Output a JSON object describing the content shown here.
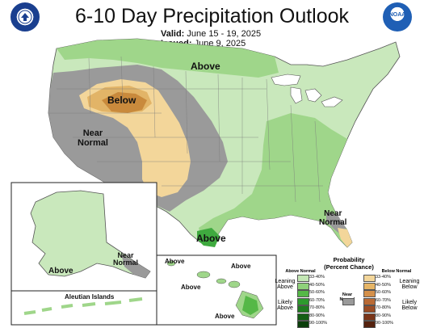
{
  "title": "6-10 Day Precipitation Outlook",
  "valid_label": "Valid:",
  "valid_dates": "June 15 - 19, 2025",
  "issued_label": "Issued:",
  "issued_date": "June 9, 2025",
  "logos": {
    "left": {
      "name": "doc-seal-icon",
      "color": "#1a3f8f"
    },
    "right": {
      "name": "noaa-logo-icon",
      "text": "NOAA",
      "color": "#1f5fb5"
    }
  },
  "map_labels": {
    "above_north": "Above",
    "below_west": "Below",
    "near_normal_west": "Near\nNormal",
    "near_normal_florida": "Near\nNormal",
    "above_texas": "Above",
    "alaska_above": "Above",
    "alaska_near_normal": "Near\nNormal",
    "aleutian": "Aleutian Islands",
    "hawaii_above_1": "Above",
    "hawaii_above_2": "Above",
    "hawaii_above_3": "Above",
    "hawaii_above_4": "Above"
  },
  "legend": {
    "title": "Probability\n(Percent Chance)",
    "above_header": "Above Normal",
    "below_header": "Below Normal",
    "near_header": "Near\nNormal",
    "leaning_above": "Leaning\nAbove",
    "likely_above": "Likely\nAbove",
    "leaning_below": "Leaning\nBelow",
    "likely_below": "Likely\nBelow",
    "bins": [
      "33-40%",
      "40-50%",
      "50-60%",
      "60-70%",
      "70-80%",
      "80-90%",
      "90-100%"
    ],
    "above_colors": [
      "#c3e6b4",
      "#8fd17a",
      "#55b847",
      "#2d9a2d",
      "#1f7a1f",
      "#145e14",
      "#0b3f0b"
    ],
    "below_colors": [
      "#f3d69a",
      "#e6b566",
      "#d4904a",
      "#b96a35",
      "#9a4c25",
      "#7a3519",
      "#55220e"
    ],
    "near_color": "#9a9a9a"
  },
  "colors": {
    "outside": "#ffffff",
    "land_base": "#c9e8bc",
    "above_40": "#9fd68a",
    "above_50": "#3faa3f",
    "near": "#9a9a9a",
    "below_33": "#f3d69a",
    "below_40": "#e2b467",
    "below_50": "#c98a3c",
    "border": "#444444",
    "water": "#ffffff"
  }
}
